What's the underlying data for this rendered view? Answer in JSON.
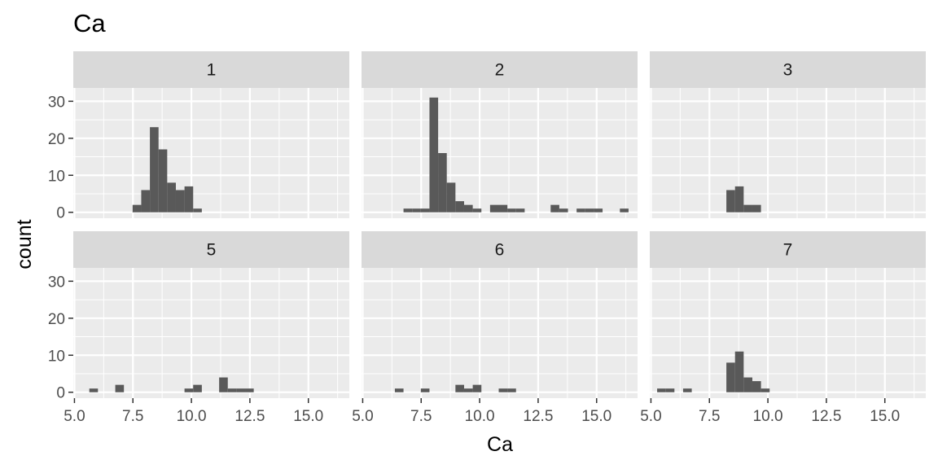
{
  "chart_data": {
    "type": "bar",
    "title": "Ca",
    "xlabel": "Ca",
    "ylabel": "count",
    "xlim": [
      4.95,
      16.75
    ],
    "ylim": [
      -1.6,
      33.6
    ],
    "x_ticks": [
      5.0,
      7.5,
      10.0,
      12.5,
      15.0
    ],
    "x_tick_labels": [
      "5.0",
      "7.5",
      "10.0",
      "12.5",
      "15.0"
    ],
    "y_ticks": [
      0,
      10,
      20,
      30
    ],
    "y_tick_labels": [
      "0",
      "10",
      "20",
      "30"
    ],
    "grid": true,
    "bin_width": 0.37,
    "panels": [
      {
        "label": "1",
        "bins": [
          {
            "x": 7.67,
            "count": 2
          },
          {
            "x": 8.04,
            "count": 6
          },
          {
            "x": 8.41,
            "count": 23
          },
          {
            "x": 8.78,
            "count": 17
          },
          {
            "x": 9.15,
            "count": 8
          },
          {
            "x": 9.52,
            "count": 6
          },
          {
            "x": 9.89,
            "count": 7
          },
          {
            "x": 10.26,
            "count": 1
          }
        ]
      },
      {
        "label": "2",
        "bins": [
          {
            "x": 6.93,
            "count": 1
          },
          {
            "x": 7.3,
            "count": 1
          },
          {
            "x": 7.67,
            "count": 1
          },
          {
            "x": 8.04,
            "count": 31
          },
          {
            "x": 8.41,
            "count": 16
          },
          {
            "x": 8.78,
            "count": 8
          },
          {
            "x": 9.15,
            "count": 3
          },
          {
            "x": 9.52,
            "count": 2
          },
          {
            "x": 9.89,
            "count": 1
          },
          {
            "x": 10.63,
            "count": 2
          },
          {
            "x": 11.0,
            "count": 2
          },
          {
            "x": 11.37,
            "count": 1
          },
          {
            "x": 11.74,
            "count": 1
          },
          {
            "x": 13.22,
            "count": 2
          },
          {
            "x": 13.59,
            "count": 1
          },
          {
            "x": 14.33,
            "count": 1
          },
          {
            "x": 14.7,
            "count": 1
          },
          {
            "x": 15.07,
            "count": 1
          },
          {
            "x": 16.18,
            "count": 1
          }
        ]
      },
      {
        "label": "3",
        "bins": [
          {
            "x": 8.41,
            "count": 6
          },
          {
            "x": 8.78,
            "count": 7
          },
          {
            "x": 9.15,
            "count": 2
          },
          {
            "x": 9.52,
            "count": 2
          }
        ]
      },
      {
        "label": "5",
        "bins": [
          {
            "x": 5.82,
            "count": 1
          },
          {
            "x": 6.93,
            "count": 2
          },
          {
            "x": 9.89,
            "count": 1
          },
          {
            "x": 10.26,
            "count": 2
          },
          {
            "x": 11.37,
            "count": 4
          },
          {
            "x": 11.74,
            "count": 1
          },
          {
            "x": 12.11,
            "count": 1
          },
          {
            "x": 12.48,
            "count": 1
          }
        ]
      },
      {
        "label": "6",
        "bins": [
          {
            "x": 6.56,
            "count": 1
          },
          {
            "x": 7.67,
            "count": 1
          },
          {
            "x": 9.15,
            "count": 2
          },
          {
            "x": 9.52,
            "count": 1
          },
          {
            "x": 9.89,
            "count": 2
          },
          {
            "x": 11.0,
            "count": 1
          },
          {
            "x": 11.37,
            "count": 1
          }
        ]
      },
      {
        "label": "7",
        "bins": [
          {
            "x": 5.45,
            "count": 1
          },
          {
            "x": 5.82,
            "count": 1
          },
          {
            "x": 6.56,
            "count": 1
          },
          {
            "x": 8.41,
            "count": 8
          },
          {
            "x": 8.78,
            "count": 11
          },
          {
            "x": 9.15,
            "count": 4
          },
          {
            "x": 9.52,
            "count": 3
          },
          {
            "x": 9.89,
            "count": 1
          }
        ]
      }
    ]
  },
  "colors": {
    "panel_background": "#ebebeb",
    "grid_major": "#ffffff",
    "strip_background": "#d9d9d9",
    "bar_fill": "#595959",
    "tick_color": "#333333"
  }
}
